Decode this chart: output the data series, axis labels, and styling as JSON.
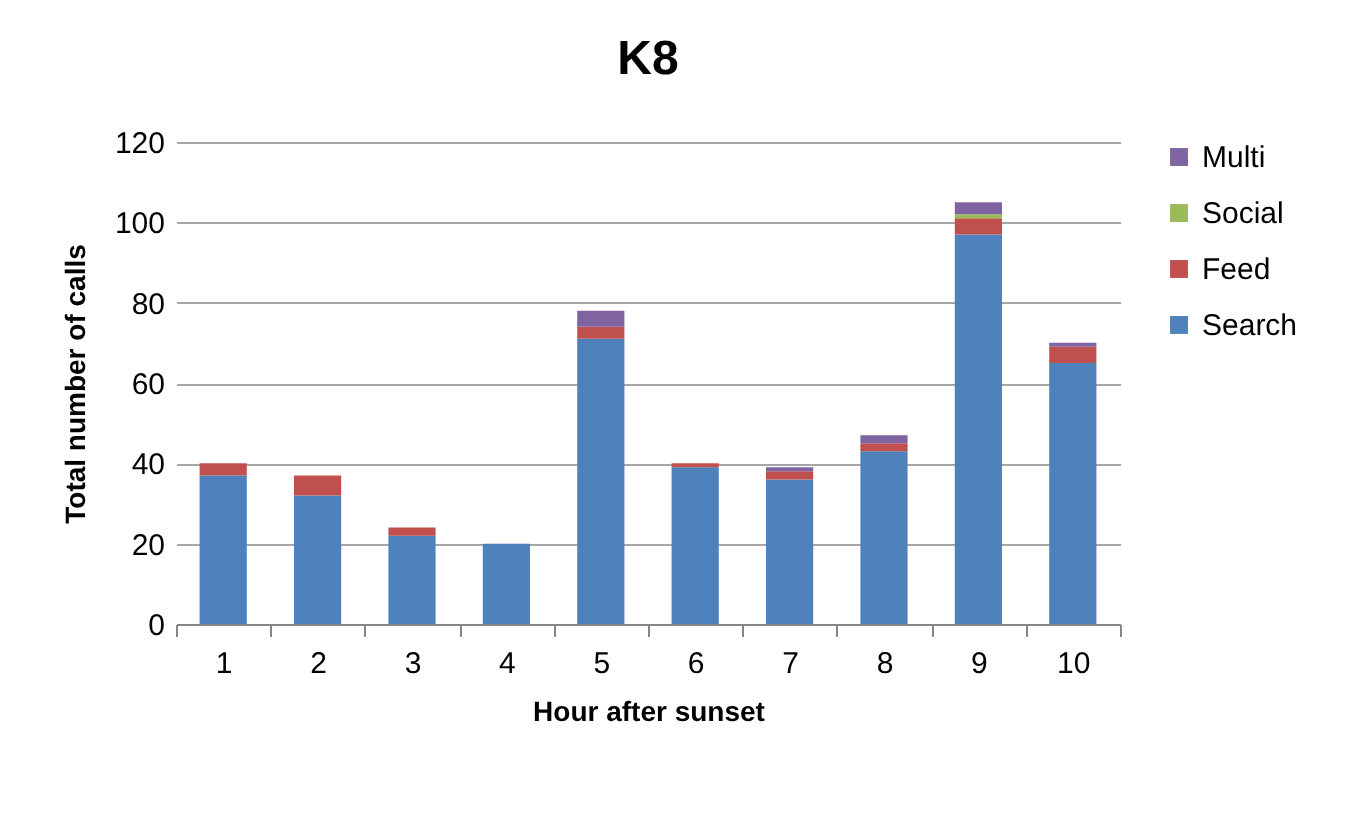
{
  "chart_data": {
    "type": "bar",
    "title": "K8",
    "xlabel": "Hour after sunset",
    "ylabel": "Total number of calls",
    "categories": [
      "1",
      "2",
      "3",
      "4",
      "5",
      "6",
      "7",
      "8",
      "9",
      "10"
    ],
    "stacked": true,
    "series": [
      {
        "name": "Search",
        "color": "#4f81bd",
        "values": [
          37,
          32,
          22,
          20,
          71,
          39,
          36,
          43,
          97,
          65
        ]
      },
      {
        "name": "Feed",
        "color": "#c0504d",
        "values": [
          3,
          5,
          2,
          0,
          3,
          1,
          2,
          2,
          4,
          4
        ]
      },
      {
        "name": "Social",
        "color": "#9bbb59",
        "values": [
          0,
          0,
          0,
          0,
          0,
          0,
          0,
          0,
          1,
          0
        ]
      },
      {
        "name": "Multi",
        "color": "#8064a2",
        "values": [
          0,
          0,
          0,
          0,
          4,
          0,
          1,
          2,
          3,
          1
        ]
      }
    ],
    "ylim": [
      0,
      120
    ],
    "yticks": [
      0,
      20,
      40,
      60,
      80,
      100,
      120
    ],
    "grid": "y",
    "legend": "right"
  }
}
